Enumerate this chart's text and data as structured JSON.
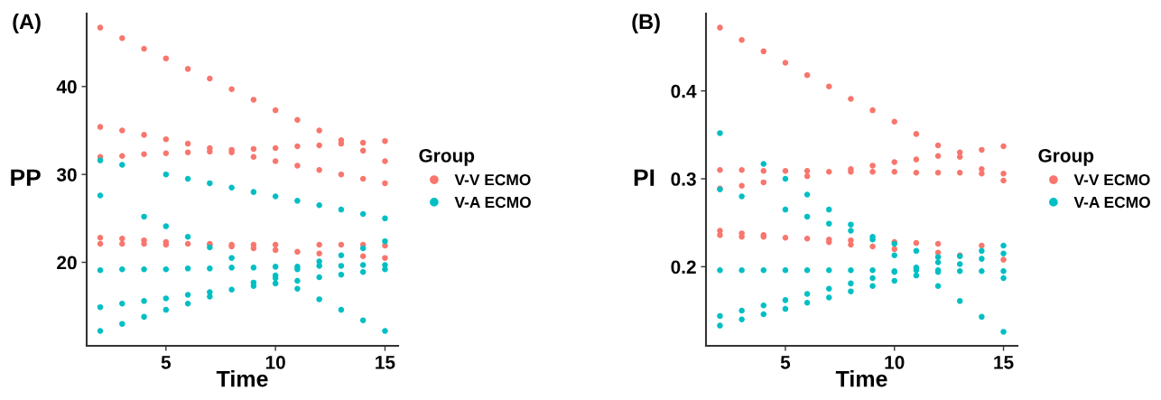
{
  "chart_data": [
    {
      "type": "scatter",
      "title": "(A)",
      "xlabel": "Time",
      "ylabel": "PP",
      "legend_title": "Group",
      "legend": "right",
      "marker": "circle",
      "grid": false,
      "xlim": [
        1.38,
        15.6
      ],
      "xticks": [
        5,
        10,
        15
      ],
      "ylim": [
        10.5,
        48.3
      ],
      "yticks": [
        20,
        30,
        40
      ],
      "series": [
        {
          "name": "V-V ECMO",
          "color": "#f8766d",
          "x": [
            2,
            2,
            2,
            2,
            2,
            3,
            3,
            3,
            3,
            3,
            4,
            4,
            4,
            4,
            4,
            5,
            5,
            5,
            5,
            5,
            6,
            6,
            6,
            6,
            7,
            7,
            7,
            7,
            7,
            8,
            8,
            8,
            8,
            8,
            9,
            9,
            9,
            9,
            9,
            10,
            10,
            10,
            10,
            10,
            11,
            11,
            11,
            11,
            12,
            12,
            12,
            12,
            12,
            13,
            13,
            13,
            13,
            14,
            14,
            14,
            14,
            14,
            15,
            15,
            15,
            15,
            15
          ],
          "values": [
            46.7,
            35.4,
            32.0,
            22.8,
            22.1,
            45.5,
            35.0,
            32.1,
            22.7,
            22.1,
            44.3,
            34.5,
            32.3,
            22.5,
            22.1,
            43.2,
            34.0,
            32.4,
            22.3,
            22.0,
            42.0,
            33.5,
            32.5,
            22.1,
            40.9,
            33.0,
            32.6,
            22.1,
            22.0,
            39.7,
            32.8,
            32.5,
            22.0,
            21.8,
            38.5,
            32.9,
            32.0,
            22.0,
            21.6,
            37.3,
            33.0,
            31.5,
            22.0,
            21.4,
            36.2,
            33.2,
            31.0,
            21.2,
            35.0,
            33.3,
            30.5,
            22.0,
            21.0,
            33.9,
            33.5,
            30.0,
            22.0,
            33.6,
            32.7,
            29.5,
            22.0,
            20.7,
            33.8,
            31.5,
            29.0,
            21.9,
            20.5
          ]
        },
        {
          "name": "V-A ECMO",
          "color": "#00bfc4",
          "x": [
            2,
            2,
            2,
            2,
            2,
            3,
            3,
            3,
            3,
            4,
            4,
            4,
            4,
            5,
            5,
            5,
            5,
            5,
            6,
            6,
            6,
            6,
            6,
            7,
            7,
            7,
            7,
            7,
            8,
            8,
            8,
            8,
            9,
            9,
            9,
            9,
            10,
            10,
            10,
            10,
            10,
            11,
            11,
            11,
            11,
            11,
            12,
            12,
            12,
            12,
            12,
            13,
            13,
            13,
            13,
            13,
            14,
            14,
            14,
            14,
            14,
            15,
            15,
            15,
            15,
            15
          ],
          "values": [
            31.6,
            27.6,
            19.1,
            14.9,
            12.2,
            31.1,
            19.2,
            15.3,
            13.0,
            25.2,
            19.2,
            15.6,
            13.8,
            30.0,
            24.1,
            19.2,
            15.9,
            14.6,
            29.5,
            22.9,
            19.3,
            16.3,
            15.3,
            29.0,
            21.7,
            19.3,
            16.6,
            16.1,
            28.5,
            20.5,
            19.4,
            16.9,
            28.0,
            19.4,
            17.7,
            17.3,
            27.5,
            19.5,
            18.5,
            18.2,
            17.6,
            27.0,
            19.5,
            19.2,
            17.9,
            17.0,
            26.5,
            20.1,
            19.6,
            18.3,
            15.8,
            26.0,
            20.8,
            19.6,
            18.6,
            14.6,
            25.5,
            21.6,
            19.7,
            18.9,
            13.4,
            25.0,
            22.4,
            19.7,
            19.2,
            12.2
          ]
        }
      ]
    },
    {
      "type": "scatter",
      "title": "(B)",
      "xlabel": "Time",
      "ylabel": "PI",
      "legend_title": "Group",
      "legend": "right",
      "marker": "circle",
      "grid": false,
      "xlim": [
        1.36,
        15.64
      ],
      "xticks": [
        5,
        10,
        15
      ],
      "ylim": [
        0.11,
        0.488
      ],
      "yticks": [
        0.2,
        0.3,
        0.4
      ],
      "series": [
        {
          "name": "V-V ECMO",
          "color": "#f8766d",
          "x": [
            2,
            2,
            2,
            2,
            2,
            3,
            3,
            3,
            3,
            3,
            4,
            4,
            4,
            4,
            4,
            5,
            5,
            5,
            6,
            6,
            6,
            6,
            7,
            7,
            7,
            7,
            8,
            8,
            8,
            8,
            8,
            9,
            9,
            9,
            9,
            10,
            10,
            10,
            10,
            10,
            11,
            11,
            11,
            11,
            12,
            12,
            12,
            12,
            12,
            13,
            13,
            13,
            13,
            14,
            14,
            14,
            14,
            15,
            15,
            15,
            15
          ],
          "values": [
            0.472,
            0.31,
            0.289,
            0.241,
            0.236,
            0.458,
            0.31,
            0.292,
            0.238,
            0.234,
            0.445,
            0.309,
            0.296,
            0.236,
            0.234,
            0.432,
            0.309,
            0.233,
            0.418,
            0.309,
            0.303,
            0.232,
            0.405,
            0.308,
            0.231,
            0.228,
            0.391,
            0.311,
            0.308,
            0.23,
            0.225,
            0.378,
            0.315,
            0.308,
            0.223,
            0.365,
            0.319,
            0.308,
            0.228,
            0.22,
            0.351,
            0.322,
            0.307,
            0.227,
            0.338,
            0.326,
            0.307,
            0.226,
            0.216,
            0.33,
            0.325,
            0.307,
            0.213,
            0.333,
            0.311,
            0.306,
            0.224,
            0.337,
            0.306,
            0.298,
            0.208
          ]
        },
        {
          "name": "V-A ECMO",
          "color": "#00bfc4",
          "x": [
            2,
            2,
            2,
            2,
            2,
            3,
            3,
            3,
            3,
            4,
            4,
            4,
            4,
            5,
            5,
            5,
            5,
            5,
            6,
            6,
            6,
            6,
            6,
            7,
            7,
            7,
            7,
            7,
            8,
            8,
            8,
            8,
            8,
            9,
            9,
            9,
            9,
            9,
            10,
            10,
            10,
            10,
            10,
            11,
            11,
            11,
            11,
            12,
            12,
            12,
            12,
            12,
            13,
            13,
            13,
            13,
            14,
            14,
            14,
            14,
            15,
            15,
            15,
            15,
            15
          ],
          "values": [
            0.352,
            0.288,
            0.196,
            0.144,
            0.133,
            0.28,
            0.196,
            0.15,
            0.14,
            0.317,
            0.196,
            0.156,
            0.146,
            0.3,
            0.265,
            0.196,
            0.162,
            0.152,
            0.282,
            0.257,
            0.196,
            0.169,
            0.159,
            0.265,
            0.249,
            0.196,
            0.175,
            0.165,
            0.248,
            0.241,
            0.196,
            0.181,
            0.172,
            0.234,
            0.231,
            0.196,
            0.187,
            0.178,
            0.226,
            0.213,
            0.195,
            0.194,
            0.184,
            0.218,
            0.199,
            0.196,
            0.19,
            0.211,
            0.205,
            0.196,
            0.194,
            0.178,
            0.212,
            0.203,
            0.195,
            0.161,
            0.218,
            0.209,
            0.195,
            0.143,
            0.224,
            0.215,
            0.195,
            0.187,
            0.126
          ]
        }
      ]
    }
  ]
}
